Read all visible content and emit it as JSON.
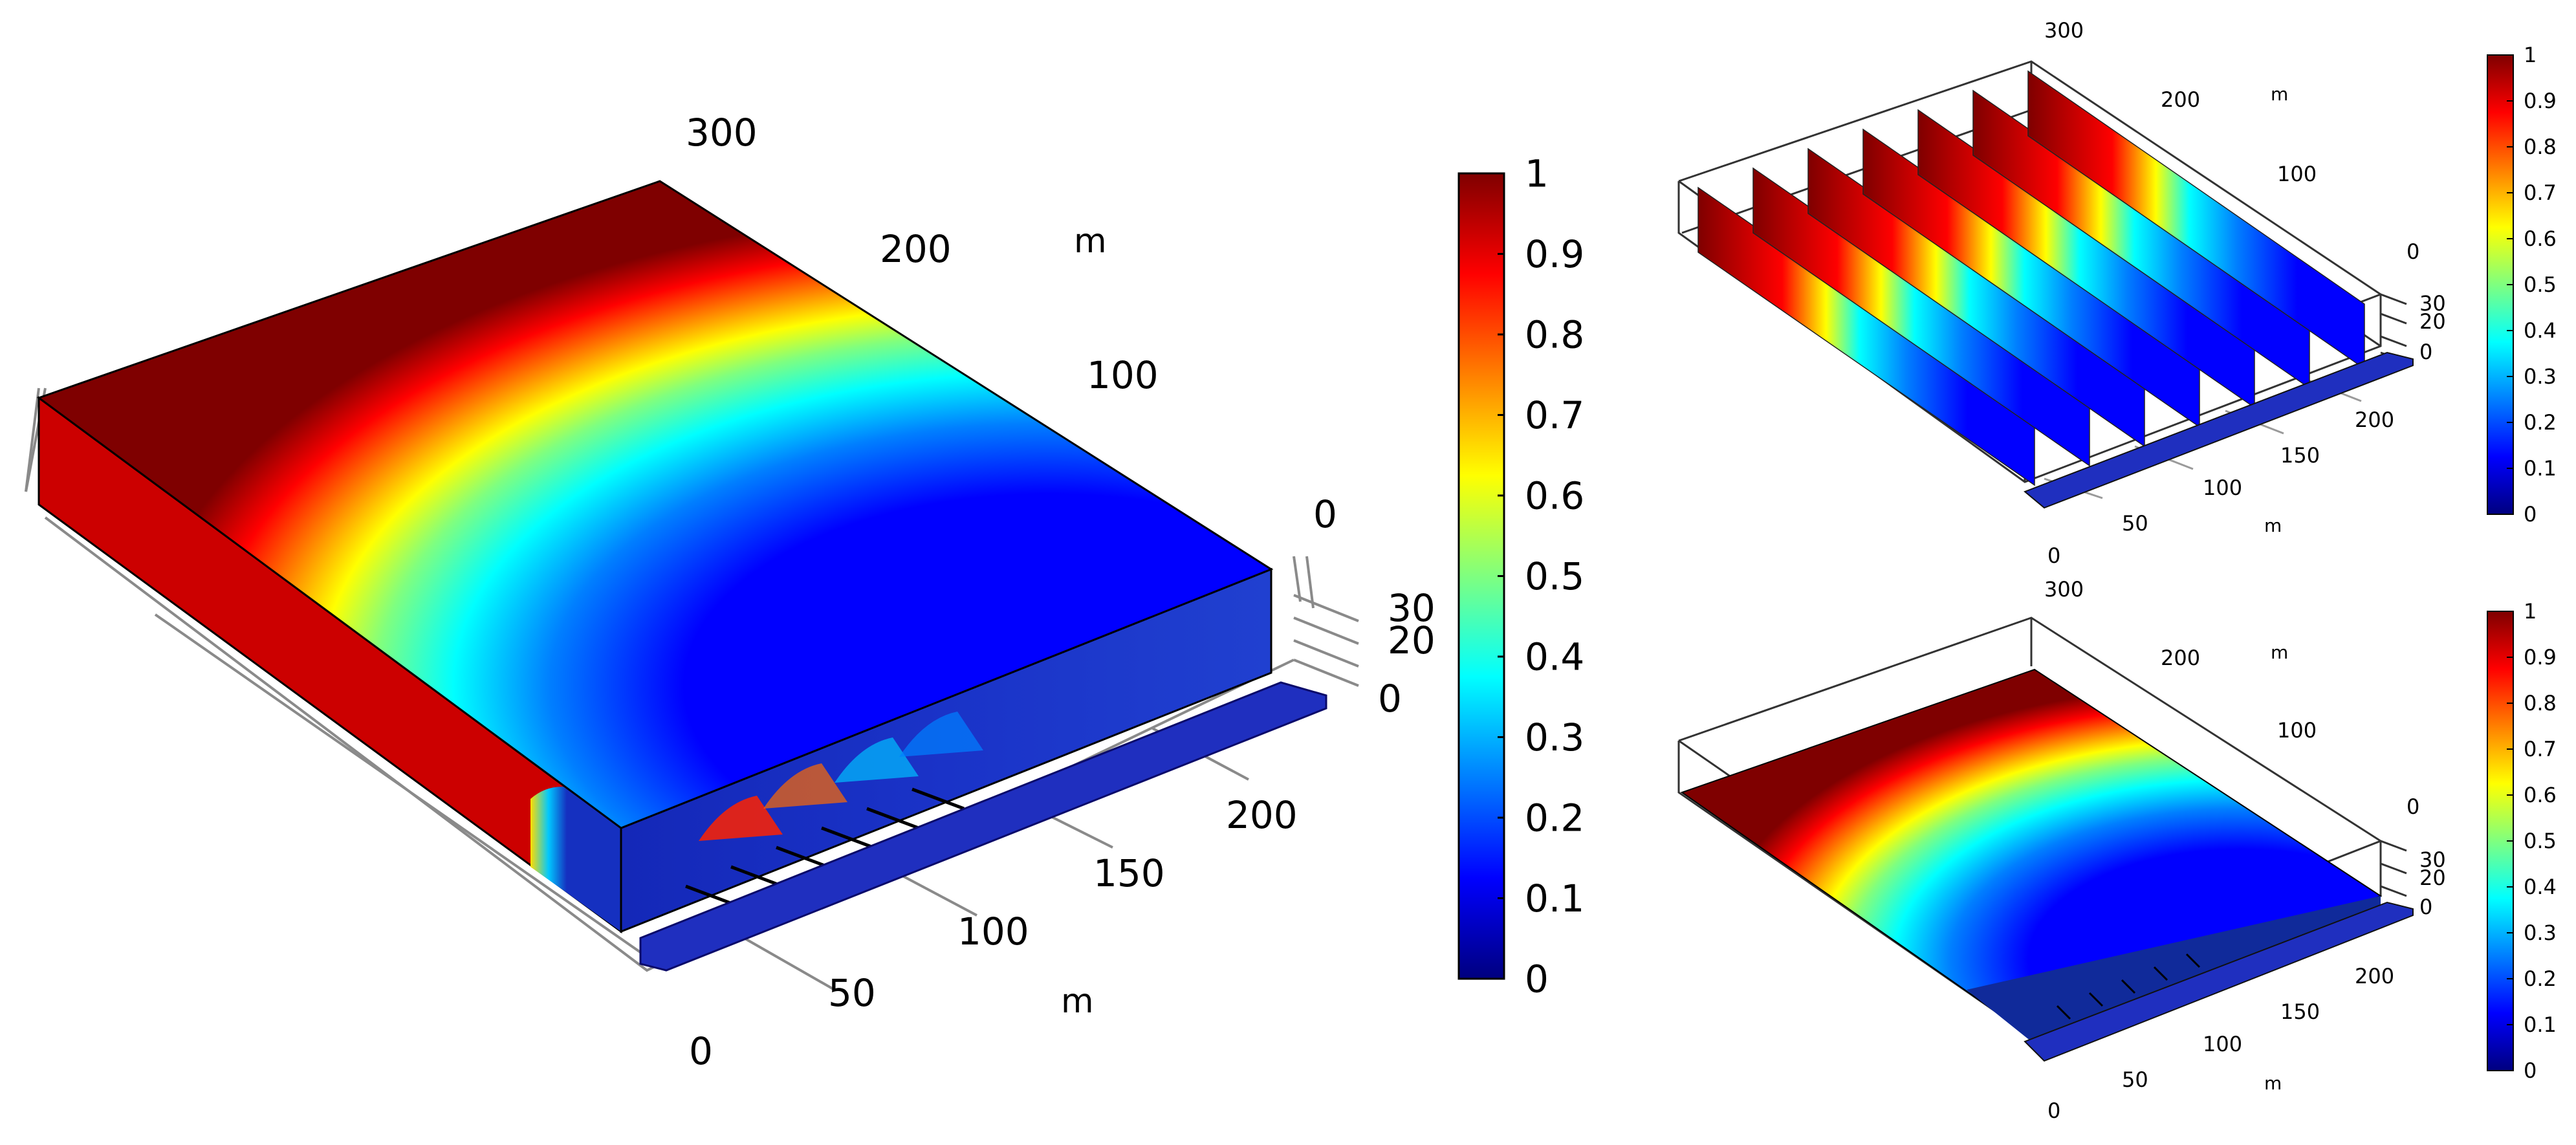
{
  "colormap": {
    "stops": [
      "#00007f",
      "#0000ff",
      "#007fff",
      "#00ffff",
      "#7fff7f",
      "#ffff00",
      "#ff7f00",
      "#ff0000",
      "#7f0000"
    ],
    "outline": "#000000",
    "grid": "#8a8a8a"
  },
  "panels": [
    {
      "id": "main",
      "x_axis": {
        "unit": "m",
        "ticks": [
          "0",
          "50",
          "100",
          "150",
          "200"
        ]
      },
      "y_axis": {
        "unit": "m",
        "ticks": [
          "300",
          "200",
          "100",
          "0"
        ]
      },
      "z_axis": {
        "ticks": [
          "30",
          "20",
          "0"
        ]
      },
      "colorbar": {
        "ticks": [
          "1",
          "0.9",
          "0.8",
          "0.7",
          "0.6",
          "0.5",
          "0.4",
          "0.3",
          "0.2",
          "0.1",
          "0"
        ]
      }
    },
    {
      "id": "slices",
      "x_axis": {
        "unit": "m",
        "ticks": [
          "0",
          "50",
          "100",
          "150",
          "200"
        ]
      },
      "y_axis": {
        "unit": "m",
        "ticks": [
          "300",
          "200",
          "100",
          "0"
        ]
      },
      "z_axis": {
        "ticks": [
          "30",
          "20",
          "0"
        ]
      },
      "colorbar": {
        "ticks": [
          "1",
          "0.9",
          "0.8",
          "0.7",
          "0.6",
          "0.5",
          "0.4",
          "0.3",
          "0.2",
          "0.1",
          "0"
        ]
      }
    },
    {
      "id": "bottom",
      "x_axis": {
        "unit": "m",
        "ticks": [
          "0",
          "50",
          "100",
          "150",
          "200"
        ]
      },
      "y_axis": {
        "unit": "m",
        "ticks": [
          "300",
          "200",
          "100",
          "0"
        ]
      },
      "z_axis": {
        "ticks": [
          "30",
          "20",
          "0"
        ]
      },
      "colorbar": {
        "ticks": [
          "1",
          "0.9",
          "0.8",
          "0.7",
          "0.6",
          "0.5",
          "0.4",
          "0.3",
          "0.2",
          "0.1",
          "0"
        ]
      }
    }
  ]
}
